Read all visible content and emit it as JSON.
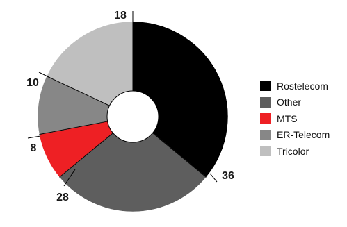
{
  "chart_data": {
    "type": "pie",
    "donut": true,
    "start_angle_deg": 0,
    "direction": "clockwise",
    "legend_position": "right",
    "series": [
      {
        "name": "Rostelecom",
        "value": 36,
        "color": "#000000"
      },
      {
        "name": "Other",
        "value": 28,
        "color": "#5e5e5e"
      },
      {
        "name": "MTS",
        "value": 8,
        "color": "#ee2024"
      },
      {
        "name": "ER-Telecom",
        "value": 10,
        "color": "#878787"
      },
      {
        "name": "Tricolor",
        "value": 18,
        "color": "#bfbfbf"
      }
    ]
  }
}
